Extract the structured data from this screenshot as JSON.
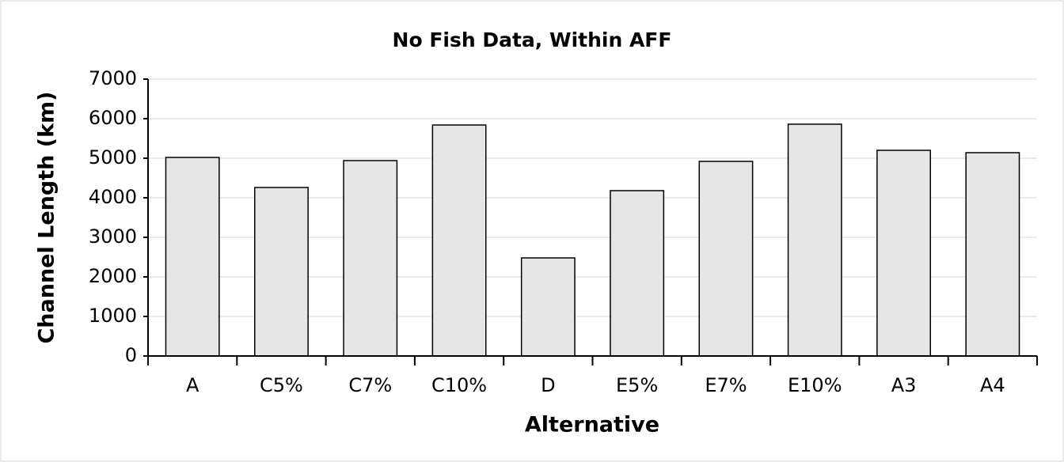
{
  "chart_data": {
    "type": "bar",
    "title": "No Fish Data, Within AFF",
    "x_label": "Alternative",
    "y_label": "Channel Length (km)",
    "categories": [
      "A",
      "C5%",
      "C7%",
      "C10%",
      "D",
      "E5%",
      "E7%",
      "E10%",
      "A3",
      "A4"
    ],
    "values": [
      5020,
      4260,
      4940,
      5840,
      2480,
      4180,
      4920,
      5860,
      5200,
      5140
    ],
    "color": "#e6e6e6",
    "ylim": [
      0,
      7000
    ],
    "yticks": [
      0,
      1000,
      2000,
      3000,
      4000,
      5000,
      6000,
      7000
    ],
    "grid": true
  }
}
